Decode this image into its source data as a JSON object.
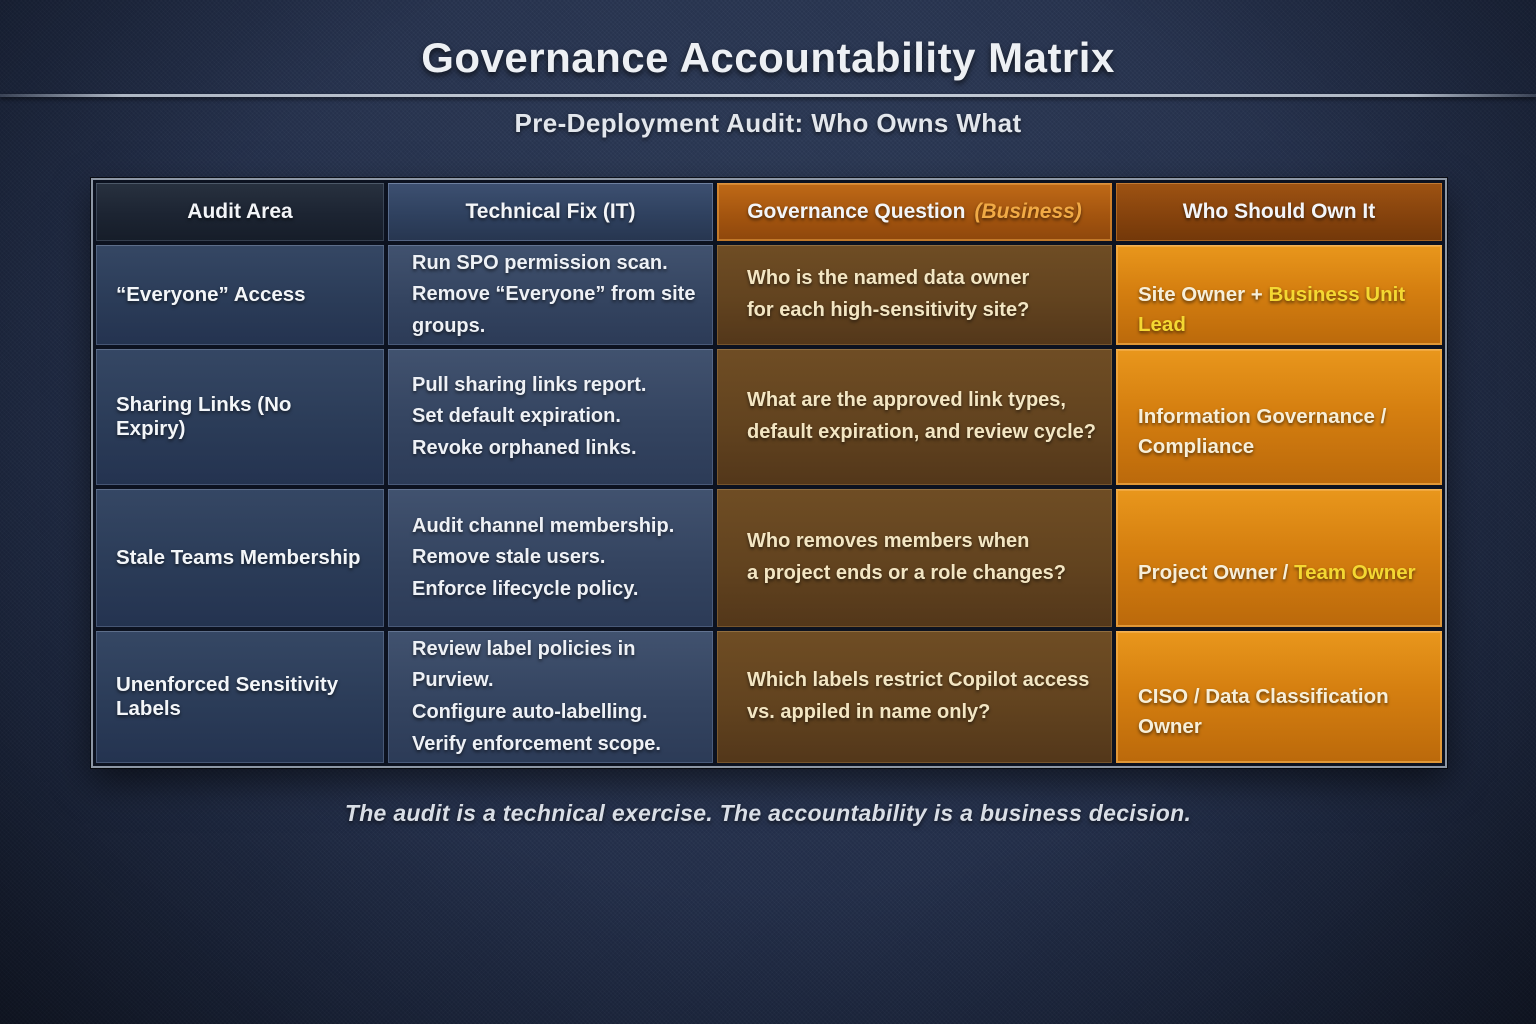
{
  "title": "Governance Accountability Matrix",
  "subtitle": "Pre-Deployment Audit: Who Owns What",
  "footer": "The audit is a technical exercise. The accountability is a business decision.",
  "colors": {
    "background": "#25314a",
    "navy_cell": "#2b3c58",
    "blue_cell": "#344460",
    "brown_cell": "#62431f",
    "orange_cell": "#d57f10",
    "header_orange": "#a4550f",
    "header_rust": "#86430d",
    "cream_text": "#f7efd9",
    "gold_text": "#f4d832",
    "business_tag": "#f1aa45"
  },
  "table": {
    "headers": [
      {
        "label": "Audit Area"
      },
      {
        "label": "Technical Fix (IT)"
      },
      {
        "label": "Governance Question",
        "suffix": "(Business)"
      },
      {
        "label": "Who Should Own It"
      }
    ],
    "rows": [
      {
        "audit_area": "“Everyone” Access",
        "technical_fix": "Run SPO permission scan.\nRemove “Everyone” from site groups.",
        "governance_question": "Who is the named data owner\nfor each high-sensitivity site?",
        "owner": [
          {
            "text": "Site Owner + "
          },
          {
            "text": "Business Unit Lead"
          }
        ]
      },
      {
        "audit_area": "Sharing Links (No Expiry)",
        "technical_fix": "Pull sharing links report.\nSet default expiration.\nRevoke orphaned links.",
        "governance_question": "What are the approved link types,\ndefault expiration, and review cycle?",
        "owner": [
          {
            "text": "Information Governance /\nCompliance"
          }
        ]
      },
      {
        "audit_area": "Stale Teams Membership",
        "technical_fix": "Audit channel membership.\nRemove stale users.\nEnforce lifecycle policy.",
        "governance_question": "Who removes members when\na project ends or a role changes?",
        "owner": [
          {
            "text": "Project Owner / "
          },
          {
            "text": "Team Owner"
          }
        ]
      },
      {
        "audit_area": "Unenforced Sensitivity Labels",
        "technical_fix": "Review label policies in Purview.\nConfigure auto-labelling.\nVerify enforcement scope.",
        "governance_question": "Which labels restrict Copilot access\nvs. appiled in name only?",
        "owner": [
          {
            "text": "CISO / Data Classification Owner"
          }
        ]
      }
    ]
  }
}
